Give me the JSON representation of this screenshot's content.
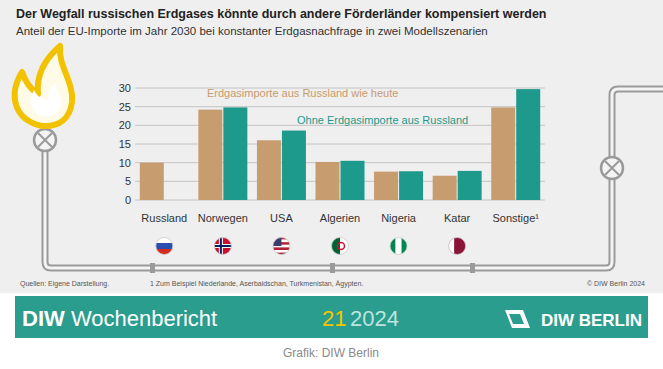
{
  "chart_data": {
    "type": "bar",
    "title": "Der Wegfall russischen Erdgases könnte durch andere Förderländer kompensiert werden",
    "subtitle": "Anteil der EU-Importe im Jahr 2030 bei konstanter Erdgasnachfrage in zwei Modellszenarien",
    "categories": [
      "Russland",
      "Norwegen",
      "USA",
      "Algerien",
      "Nigeria",
      "Katar",
      "Sonstige¹"
    ],
    "series": [
      {
        "name": "Erdgasimporte aus Russland wie heute",
        "color": "#c79c6e",
        "values": [
          10,
          24.2,
          16,
          10.2,
          7.6,
          6.5,
          24.8
        ]
      },
      {
        "name": "Ohne Erdgasimporte aus Russland",
        "color": "#1d9a8b",
        "values": [
          0,
          24.8,
          18.6,
          10.5,
          7.7,
          7.8,
          29.7
        ]
      }
    ],
    "ylim": [
      0,
      30
    ],
    "yticks": [
      0,
      5,
      10,
      15,
      20,
      25,
      30
    ],
    "grid": true,
    "legend": "top-left",
    "source": "Quellen: Eigene Darstellung.",
    "footnote": "1 Zum Beispiel Niederlande, Aserbaidschan, Turkmenistan, Ägypten.",
    "copyright": "© DIW Berlin 2024"
  },
  "banner": {
    "publication": "DIW Wochenbericht",
    "issue": "21",
    "year": "2024",
    "logo": "DIW BERLIN"
  },
  "caption": "Grafik: DIW Berlin"
}
